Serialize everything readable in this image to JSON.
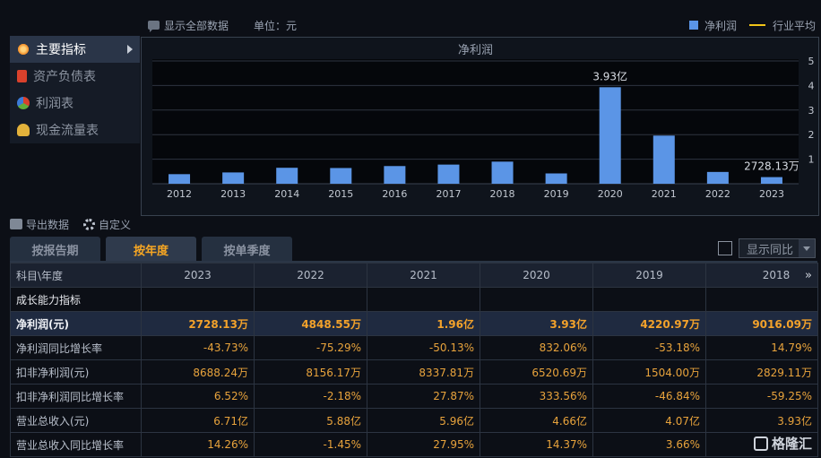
{
  "topbar": {
    "show_all": "显示全部数据",
    "unit": "单位：元"
  },
  "legend": {
    "net_profit": "净利润",
    "industry_avg": "行业平均"
  },
  "menu": {
    "items": [
      {
        "label": "主要指标",
        "icon": "asterisk-icon",
        "color": "#f08a24"
      },
      {
        "label": "资产负债表",
        "icon": "document-icon",
        "color": "#d9412c"
      },
      {
        "label": "利润表",
        "icon": "pie-chart-icon",
        "color": "#5fae3b"
      },
      {
        "label": "现金流量表",
        "icon": "coins-icon",
        "color": "#e3b23b"
      }
    ]
  },
  "toolbar": {
    "export": "导出数据",
    "customize": "自定义"
  },
  "tabs": [
    "按报告期",
    "按年度",
    "按单季度"
  ],
  "yoy": {
    "label": "显示同比"
  },
  "colors": {
    "bar": "#5b95e6",
    "industry_line": "#f1c418",
    "accent": "#f6a623"
  },
  "chart_data": {
    "type": "bar",
    "title": "净利润",
    "categories": [
      "2012",
      "2013",
      "2014",
      "2015",
      "2016",
      "2017",
      "2018",
      "2019",
      "2020",
      "2021",
      "2022",
      "2023"
    ],
    "values": [
      0.39,
      0.46,
      0.65,
      0.64,
      0.72,
      0.78,
      0.9,
      0.42,
      3.93,
      1.96,
      0.48,
      0.27
    ],
    "data_labels": {
      "8": "3.93亿",
      "11": "2728.13万"
    },
    "ylim": [
      0,
      5
    ],
    "yticks": [
      "1",
      "2",
      "3",
      "4",
      "5"
    ],
    "y_axis_side": "right",
    "grid": true
  },
  "table": {
    "header_first": "科目\\年度",
    "years": [
      "2023",
      "2022",
      "2021",
      "2020",
      "2019",
      "2018"
    ],
    "more_icon": "»",
    "section": "成长能力指标",
    "rows": [
      {
        "label": "净利润(元)",
        "values": [
          "2728.13万",
          "4848.55万",
          "1.96亿",
          "3.93亿",
          "4220.97万",
          "9016.09万"
        ]
      },
      {
        "label": "净利润同比增长率",
        "values": [
          "-43.73%",
          "-75.29%",
          "-50.13%",
          "832.06%",
          "-53.18%",
          "14.79%"
        ]
      },
      {
        "label": "扣非净利润(元)",
        "values": [
          "8688.24万",
          "8156.17万",
          "8337.81万",
          "6520.69万",
          "1504.00万",
          "2829.11万"
        ]
      },
      {
        "label": "扣非净利润同比增长率",
        "values": [
          "6.52%",
          "-2.18%",
          "27.87%",
          "333.56%",
          "-46.84%",
          "-59.25%"
        ]
      },
      {
        "label": "营业总收入(元)",
        "values": [
          "6.71亿",
          "5.88亿",
          "5.96亿",
          "4.66亿",
          "4.07亿",
          "3.93亿"
        ]
      },
      {
        "label": "营业总收入同比增长率",
        "values": [
          "14.26%",
          "-1.45%",
          "27.95%",
          "14.37%",
          "3.66%",
          ""
        ]
      }
    ]
  },
  "watermark": "格隆汇"
}
